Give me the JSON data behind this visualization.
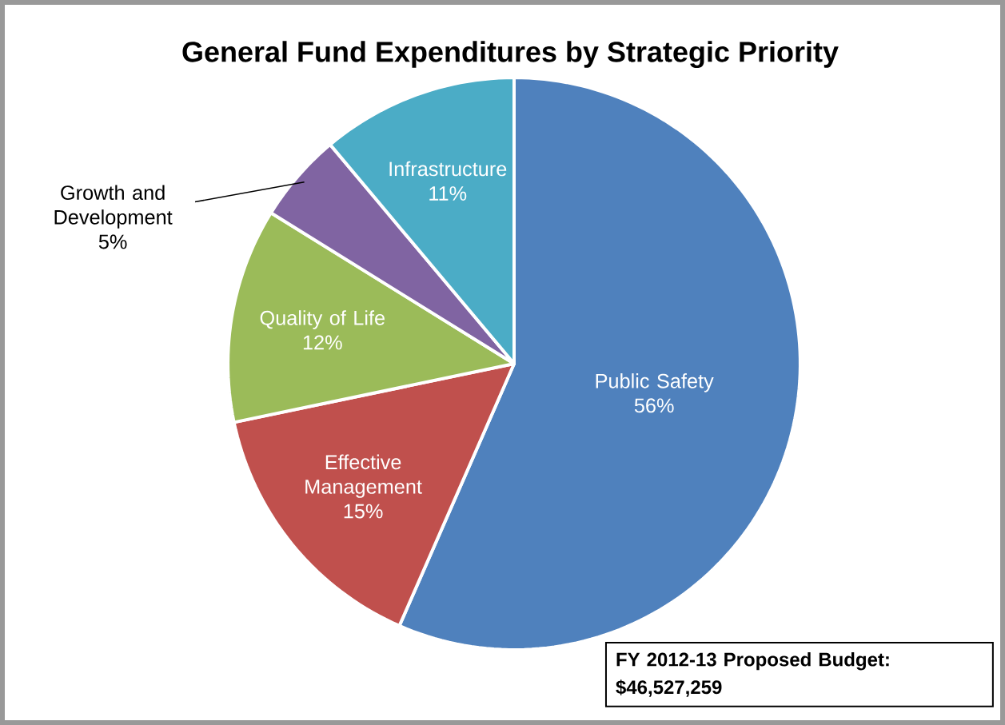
{
  "chart_data": {
    "type": "pie",
    "title": "General Fund Expenditures by Strategic Priority",
    "categories": [
      "Public Safety",
      "Effective Management",
      "Quality of Life",
      "Growth and Development",
      "Infrastructure"
    ],
    "values": [
      56,
      15,
      12,
      5,
      11
    ],
    "value_labels": [
      "56%",
      "15%",
      "12%",
      "5%",
      "11%"
    ],
    "colors": [
      "#4f81bd",
      "#c0504d",
      "#9bbb59",
      "#8064a2",
      "#4bacc6"
    ],
    "annotations": [
      "FY 2012-13 Proposed Budget: $46,527,259"
    ]
  }
}
